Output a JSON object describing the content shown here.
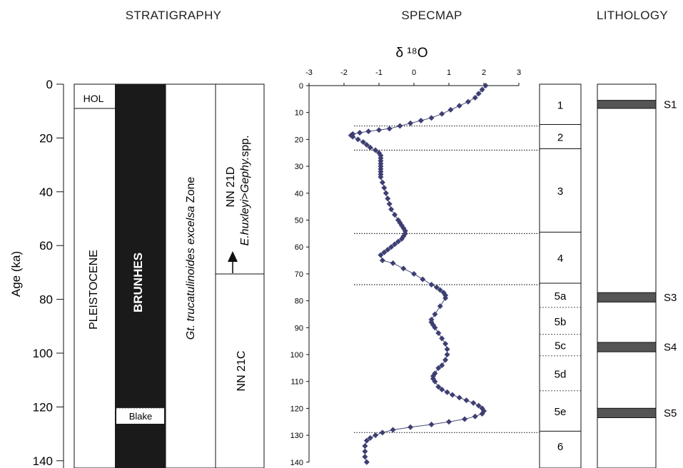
{
  "headers": {
    "stratigraphy": "STRATIGRAPHY",
    "specmap": "SPECMAP",
    "lithology": "LITHOLOGY"
  },
  "age_axis": {
    "label": "Age (ka)",
    "ticks": [
      "0",
      "20",
      "40",
      "60",
      "80",
      "100",
      "120",
      "140"
    ]
  },
  "stratigraphy": {
    "epoch_top": "HOL",
    "epoch": "PLEISTOCENE",
    "chron": "BRUNHES",
    "event": "Blake",
    "zone_italic": "Gt. trucatulinoides excelsa",
    "zone_suffix": " Zone",
    "nn_upper": "NN 21D",
    "nn_upper_sub_italic1": "E.huxleyi",
    "nn_upper_sub_gt": ">",
    "nn_upper_sub_italic2": "Gephy.",
    "nn_upper_sub_rest": "spp.",
    "nn_lower": "NN 21C"
  },
  "colors": {
    "series": "#4a4a7a",
    "marker": "#3d3f72",
    "chron": "#1a1a1a",
    "sapropel": "#555555"
  },
  "chart_data": {
    "type": "line",
    "title": "δ ¹⁸O",
    "xlabel": "δ ¹⁸O",
    "ylabel": "Age (ka)",
    "x_ticks": [
      "-3",
      "-2",
      "-1",
      "0",
      "1",
      "2",
      "3"
    ],
    "y_ticks": [
      "0",
      "10",
      "20",
      "30",
      "40",
      "50",
      "60",
      "70",
      "80",
      "90",
      "100",
      "110",
      "120",
      "130",
      "140"
    ],
    "xlim": [
      -3,
      3
    ],
    "ylim": [
      0,
      140
    ],
    "series": [
      {
        "x": [
          2.05,
          1.95,
          1.85,
          1.75,
          1.55,
          1.3,
          1.05,
          0.8,
          0.5,
          0.2,
          -0.1,
          -0.4,
          -0.7,
          -1.0,
          -1.3,
          -1.55,
          -1.75,
          -1.8,
          -1.75,
          -1.6,
          -1.45,
          -1.35,
          -1.25,
          -1.1,
          -1.0,
          -0.95,
          -0.95,
          -0.95,
          -0.95,
          -0.95,
          -0.95,
          -0.95,
          -0.95,
          -0.95,
          -0.9,
          -0.85,
          -0.8,
          -0.75,
          -0.7,
          -0.65,
          -0.55,
          -0.45,
          -0.4,
          -0.35,
          -0.3,
          -0.25,
          -0.25,
          -0.3,
          -0.35,
          -0.45,
          -0.55,
          -0.65,
          -0.75,
          -0.85,
          -0.95,
          -0.9,
          -0.6,
          -0.3,
          0.0,
          0.25,
          0.5,
          0.65,
          0.75,
          0.85,
          0.9,
          0.9,
          0.75,
          0.6,
          0.5,
          0.5,
          0.55,
          0.6,
          0.7,
          0.8,
          0.9,
          0.95,
          0.95,
          0.9,
          0.8,
          0.7,
          0.6,
          0.55,
          0.55,
          0.6,
          0.7,
          0.8,
          0.95,
          1.1,
          1.3,
          1.5,
          1.7,
          1.85,
          1.95,
          2.0,
          1.95,
          1.75,
          1.45,
          1.0,
          0.5,
          -0.1,
          -0.6,
          -0.9,
          -1.1,
          -1.25,
          -1.35,
          -1.4,
          -1.4,
          -1.4,
          -1.35
        ],
        "y": [
          0,
          1.5,
          3,
          4.5,
          6,
          7.5,
          9,
          10.5,
          12,
          13,
          14,
          15,
          16,
          16.5,
          17,
          17.5,
          18,
          18.5,
          19,
          20,
          21,
          22,
          23,
          24,
          25,
          26,
          27,
          28,
          29,
          30,
          31,
          32,
          33,
          34,
          36,
          38,
          40,
          42,
          44,
          46,
          48,
          50,
          51,
          52,
          53,
          54,
          55,
          56,
          57,
          58,
          59,
          60,
          61,
          62,
          63,
          65,
          66,
          68,
          70,
          72,
          74,
          75,
          76,
          77,
          78,
          79,
          82,
          85,
          87,
          88,
          89,
          90,
          92,
          94,
          96,
          98,
          100,
          102,
          104,
          105,
          107,
          108,
          109,
          110,
          112,
          113,
          114,
          115,
          116,
          117,
          118,
          119,
          120,
          121,
          122,
          123,
          124,
          125,
          126,
          127,
          128,
          129,
          130,
          131,
          132,
          134,
          136,
          138,
          140
        ]
      }
    ]
  },
  "oxygen_isotope_stages": [
    {
      "label": "1",
      "top": 0,
      "bottom": 15,
      "boundary_dotted": true
    },
    {
      "label": "2",
      "top": 15,
      "bottom": 24,
      "boundary_dotted": true
    },
    {
      "label": "3",
      "top": 24,
      "bottom": 55,
      "boundary_dotted": true
    },
    {
      "label": "4",
      "top": 55,
      "bottom": 74,
      "boundary_dotted": true
    },
    {
      "label": "5a",
      "top": 74,
      "bottom": 83,
      "boundary_dotted": false
    },
    {
      "label": "5b",
      "top": 83,
      "bottom": 93,
      "boundary_dotted": false
    },
    {
      "label": "5c",
      "top": 93,
      "bottom": 101,
      "boundary_dotted": false
    },
    {
      "label": "5d",
      "top": 101,
      "bottom": 114,
      "boundary_dotted": false
    },
    {
      "label": "5e",
      "top": 114,
      "bottom": 129,
      "boundary_dotted": true
    },
    {
      "label": "6",
      "top": 129,
      "bottom": 140,
      "boundary_dotted": false
    }
  ],
  "sapropels": [
    {
      "label": "S1",
      "top": 6,
      "bottom": 9
    },
    {
      "label": "S3",
      "top": 77.5,
      "bottom": 81
    },
    {
      "label": "S4",
      "top": 96,
      "bottom": 99.5
    },
    {
      "label": "S5",
      "top": 120.5,
      "bottom": 124
    }
  ]
}
